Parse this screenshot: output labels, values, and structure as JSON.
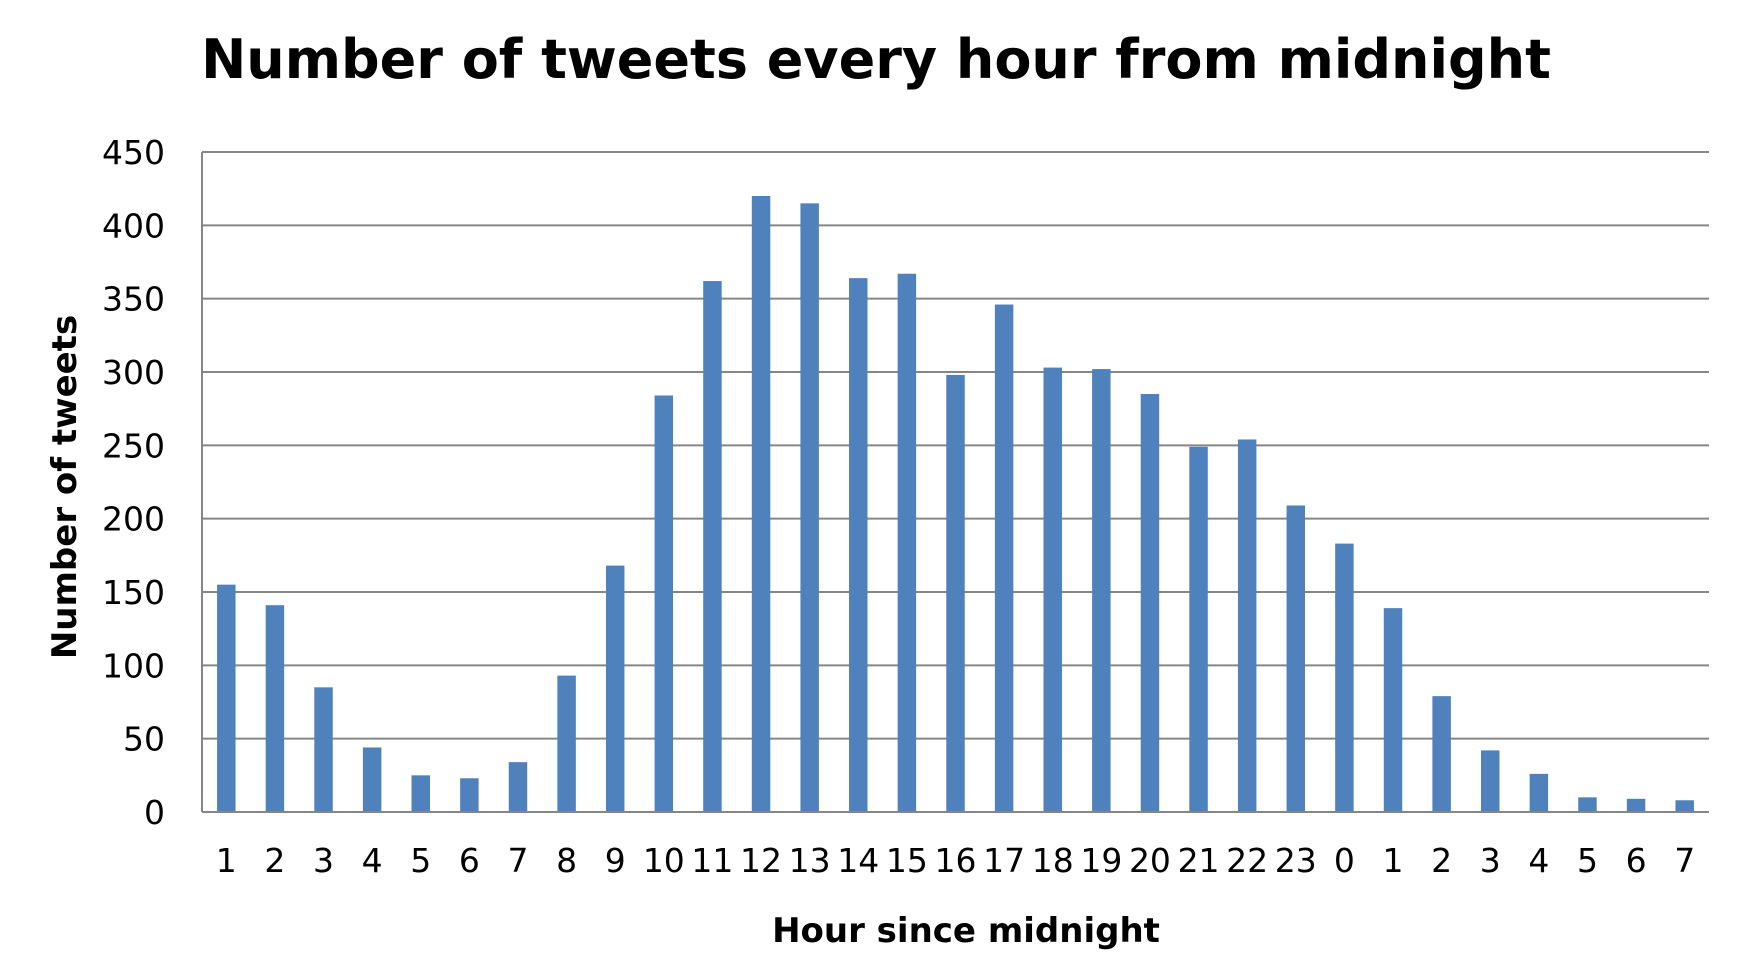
{
  "chart_data": {
    "type": "bar",
    "title": "Number of tweets every hour from midnight",
    "xlabel": "Hour since midnight",
    "ylabel": "Number of tweets",
    "ylim": [
      0,
      450
    ],
    "yticks": [
      0,
      50,
      100,
      150,
      200,
      250,
      300,
      350,
      400,
      450
    ],
    "grid": true,
    "legend": "none",
    "bar_color": "#4F81BD",
    "grid_color": "#868686",
    "categories": [
      "1",
      "2",
      "3",
      "4",
      "5",
      "6",
      "7",
      "8",
      "9",
      "10",
      "11",
      "12",
      "13",
      "14",
      "15",
      "16",
      "17",
      "18",
      "19",
      "20",
      "21",
      "22",
      "23",
      "0",
      "1",
      "2",
      "3",
      "4",
      "5",
      "6",
      "7"
    ],
    "values": [
      155,
      141,
      85,
      44,
      25,
      23,
      34,
      93,
      168,
      284,
      362,
      420,
      415,
      364,
      367,
      298,
      346,
      303,
      302,
      285,
      249,
      254,
      209,
      183,
      139,
      79,
      42,
      26,
      10,
      9,
      8
    ]
  }
}
